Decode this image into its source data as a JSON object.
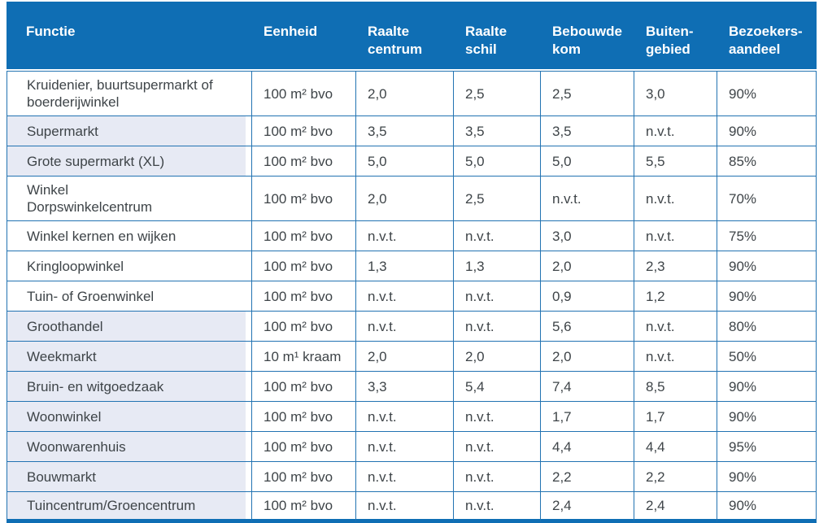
{
  "theme": {
    "header_bg": "#0f6eb4",
    "header_text": "#ffffff",
    "border": "#2273b2",
    "row_shaded": "#e7eaf4",
    "text": "#3e4448"
  },
  "table": {
    "columns": [
      {
        "key": "functie",
        "label": [
          "Functie"
        ]
      },
      {
        "key": "eenheid",
        "label": [
          "Eenheid"
        ]
      },
      {
        "key": "raalte_centrum",
        "label": [
          "Raalte",
          "centrum"
        ]
      },
      {
        "key": "raalte_schil",
        "label": [
          "Raalte",
          "schil"
        ]
      },
      {
        "key": "bebouwde_kom",
        "label": [
          "Bebouwde",
          "kom"
        ]
      },
      {
        "key": "buitengebied",
        "label": [
          "Buiten-",
          "gebied"
        ]
      },
      {
        "key": "bezoekersaandeel",
        "label": [
          "Bezoekers-",
          "aandeel"
        ]
      }
    ],
    "rows": [
      {
        "functie": "Kruidenier, buurtsupermarkt of\nboerderijwinkel",
        "eenheid": "100 m² bvo",
        "values": [
          "2,0",
          "2,5",
          "2,5",
          "3,0",
          "90%"
        ],
        "shaded": false
      },
      {
        "functie": "Supermarkt",
        "eenheid": "100 m² bvo",
        "values": [
          "3,5",
          "3,5",
          "3,5",
          "n.v.t.",
          "90%"
        ],
        "shaded": true
      },
      {
        "functie": "Grote supermarkt (XL)",
        "eenheid": "100 m² bvo",
        "values": [
          "5,0",
          "5,0",
          "5,0",
          "5,5",
          "85%"
        ],
        "shaded": true
      },
      {
        "functie": "Winkel\nDorpswinkelcentrum",
        "eenheid": "100 m² bvo",
        "values": [
          "2,0",
          "2,5",
          "n.v.t.",
          "n.v.t.",
          "70%"
        ],
        "shaded": false
      },
      {
        "functie": "Winkel kernen en wijken",
        "eenheid": "100 m² bvo",
        "values": [
          "n.v.t.",
          "n.v.t.",
          "3,0",
          "n.v.t.",
          "75%"
        ],
        "shaded": false
      },
      {
        "functie": "Kringloopwinkel",
        "eenheid": "100 m² bvo",
        "values": [
          "1,3",
          "1,3",
          "2,0",
          "2,3",
          "90%"
        ],
        "shaded": false
      },
      {
        "functie": "Tuin- of Groenwinkel",
        "eenheid": "100 m² bvo",
        "values": [
          "n.v.t.",
          "n.v.t.",
          "0,9",
          "1,2",
          "90%"
        ],
        "shaded": false
      },
      {
        "functie": "Groothandel",
        "eenheid": "100 m² bvo",
        "values": [
          "n.v.t.",
          "n.v.t.",
          "5,6",
          "n.v.t.",
          "80%"
        ],
        "shaded": true
      },
      {
        "functie": "Weekmarkt",
        "eenheid": "10 m¹ kraam",
        "values": [
          "2,0",
          "2,0",
          "2,0",
          "n.v.t.",
          "50%"
        ],
        "shaded": true
      },
      {
        "functie": "Bruin- en witgoedzaak",
        "eenheid": "100 m² bvo",
        "values": [
          "3,3",
          "5,4",
          "7,4",
          "8,5",
          "90%"
        ],
        "shaded": true
      },
      {
        "functie": "Woonwinkel",
        "eenheid": "100 m² bvo",
        "values": [
          "n.v.t.",
          "n.v.t.",
          "1,7",
          "1,7",
          "90%"
        ],
        "shaded": true
      },
      {
        "functie": "Woonwarenhuis",
        "eenheid": "100 m² bvo",
        "values": [
          "n.v.t.",
          "n.v.t.",
          "4,4",
          "4,4",
          "95%"
        ],
        "shaded": true
      },
      {
        "functie": "Bouwmarkt",
        "eenheid": "100 m² bvo",
        "values": [
          "n.v.t.",
          "n.v.t.",
          "2,2",
          "2,2",
          "90%"
        ],
        "shaded": true
      },
      {
        "functie": "Tuincentrum/Groencentrum",
        "eenheid": "100 m² bvo",
        "values": [
          "n.v.t.",
          "n.v.t.",
          "2,4",
          "2,4",
          "90%"
        ],
        "shaded": true
      }
    ]
  }
}
